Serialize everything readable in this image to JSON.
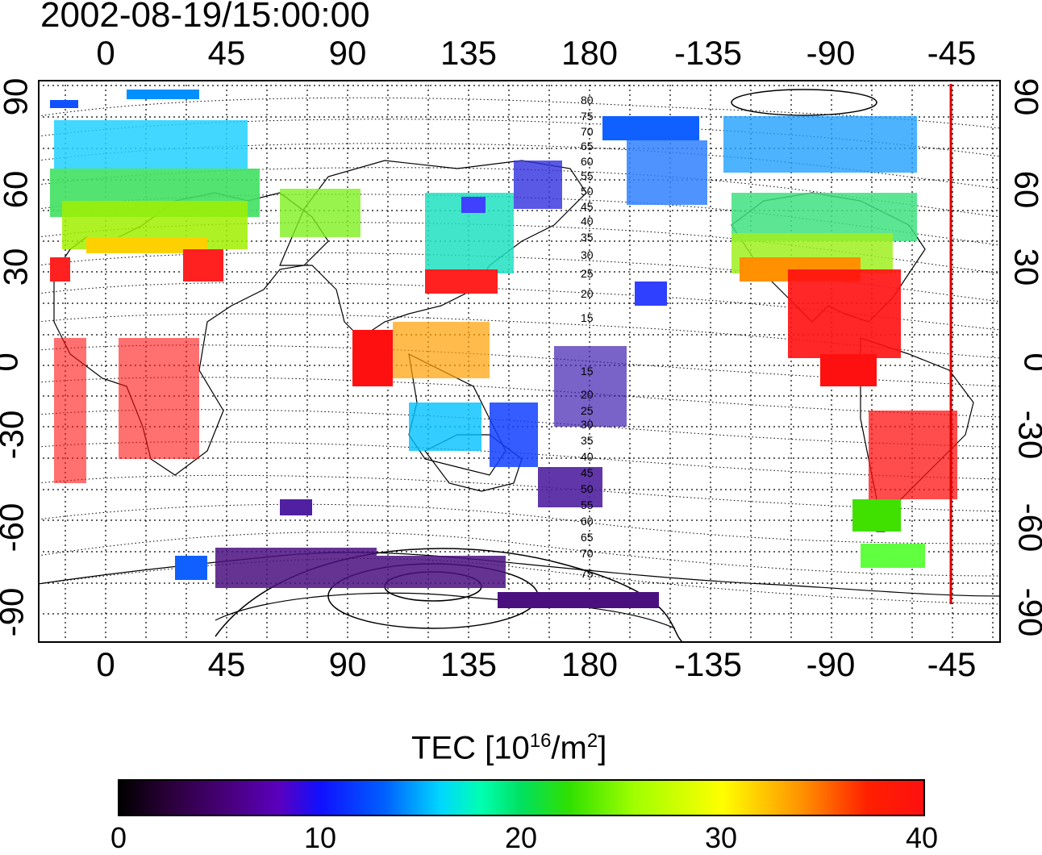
{
  "title": "2002-08-19/15:00:00",
  "lon_ticks": [
    "0",
    "45",
    "90",
    "135",
    "180",
    "-135",
    "-90",
    "-45"
  ],
  "lat_ticks_left": [
    "90",
    "60",
    "30",
    "0",
    "-30",
    "-60",
    "-90"
  ],
  "lat_ticks_right": [
    "90",
    "60",
    "30",
    "0",
    "-30",
    "-60",
    "-90"
  ],
  "contour_labels": [
    "80",
    "75",
    "70",
    "65",
    "60",
    "55",
    "50",
    "45",
    "40",
    "35",
    "30",
    "25",
    "20",
    "15",
    "15",
    "20",
    "25",
    "30",
    "35",
    "40",
    "45",
    "50",
    "55",
    "60",
    "65",
    "70",
    "75"
  ],
  "colorbar": {
    "label_main": "TEC  [10",
    "label_sup1": "16",
    "label_mid": "/m",
    "label_sup2": "2",
    "label_end": "]",
    "ticks": [
      "0",
      "10",
      "20",
      "30",
      "40"
    ],
    "range": [
      0,
      40
    ]
  },
  "marker_line": {
    "color": "#e00000",
    "longitude": -47
  },
  "colors": {
    "land_outline": "#000000",
    "grid": "#000000"
  }
}
